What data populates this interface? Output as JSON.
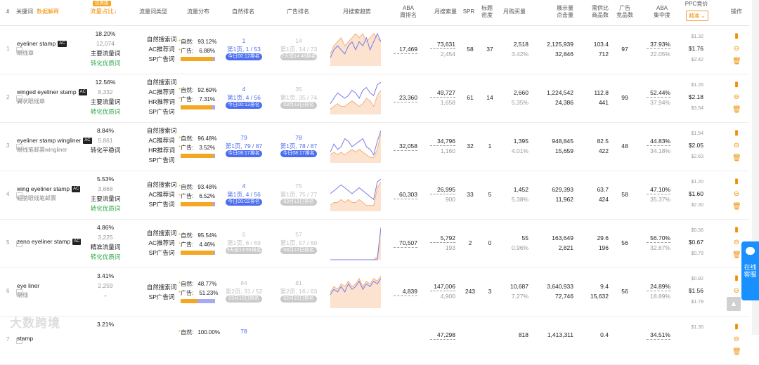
{
  "header": {
    "num": "#",
    "keyword": "关键词",
    "data_explain": "数据解释",
    "badge": "仅美版",
    "traffic_share": "流量占比↓",
    "kw_type": "流量词类型",
    "dist": "流量分布",
    "natural_rank": "自然排名",
    "ad_rank": "广告排名",
    "monthly_trend": "月搜索趋势",
    "aba": "ABA\n周排名",
    "monthly_search": "月搜索量",
    "spr": "SPR",
    "title_density": "标题\n密度",
    "monthly_purchase": "月购买量",
    "impr_click": "展示量\n点击量",
    "demand_supply": "需供比\n商品数",
    "ad_products": "广告\n竞品数",
    "aba_conc": "ABA\n集中度",
    "ppc": "PPC竞价",
    "ppc_select": "精准 ⌄",
    "ops": "操作"
  },
  "rows": [
    {
      "idx": "1",
      "kw": "eyeliner stamp",
      "ac": "AC",
      "cn": "眼线章",
      "pct": "18.20%",
      "pct2": "12,074",
      "level": "主要流量词",
      "conv": "转化优质词",
      "types": [
        "自然搜索词",
        "AC推荐词",
        "SP广告词"
      ],
      "nat_label": "自然:",
      "nat_pct": "93.12%",
      "ad_label": "广告:",
      "ad_pct": "6.88%",
      "nat_frac": 0.9312,
      "nr1": "1",
      "nr2": "第1页, 1 / 53",
      "nr_tag": "今日00:12排名",
      "nr_gray": false,
      "ar1": "14",
      "ar2": "第1页, 14 / 73",
      "ar_tag": "2天前14:48排名",
      "ar_gray": true,
      "aba": "17,469",
      "ms": "73,631",
      "ms2": "2,454",
      "spr": "58",
      "td": "37",
      "mp": "2,518",
      "mp2": "3.42%",
      "imp": "2,125,939",
      "clk": "32,846",
      "ds": "103.4",
      "prod": "712",
      "adc": "97",
      "conc": "37.93%",
      "conc2": "22.05%",
      "p1": "$1.32",
      "p2": "$1.76",
      "p3": "$2.42",
      "trend_n": [
        2,
        4,
        5,
        4,
        3,
        5,
        6,
        4,
        6,
        5,
        7,
        4,
        6,
        8,
        6
      ],
      "trend_a": [
        3,
        5,
        6,
        7,
        5,
        6,
        7,
        8,
        7,
        8,
        6,
        7,
        8,
        7,
        6
      ]
    },
    {
      "idx": "2",
      "kw": "winged eyeliner stamp",
      "ac": "AC",
      "cn": "翼状眼线章",
      "pct": "12.56%",
      "pct2": "8,332",
      "level": "主要流量词",
      "conv": "转化优质词",
      "types": [
        "自然搜索词",
        "AC推荐词",
        "HR推荐词",
        "SP广告词"
      ],
      "nat_label": "自然:",
      "nat_pct": "92.69%",
      "ad_label": "广告:",
      "ad_pct": "7.31%",
      "nat_frac": 0.9269,
      "nr1": "4",
      "nr2": "第1页, 4 / 56",
      "nr_tag": "今日00:13排名",
      "nr_gray": false,
      "ar1": "35",
      "ar2": "第1页, 35 / 74",
      "ar_tag": "03月13日排名",
      "ar_gray": true,
      "aba": "23,360",
      "ms": "49,727",
      "ms2": "1,658",
      "spr": "61",
      "td": "14",
      "mp": "2,660",
      "mp2": "5.35%",
      "imp": "1,224,542",
      "clk": "24,386",
      "ds": "112.8",
      "prod": "441",
      "adc": "99",
      "conc": "52.44%",
      "conc2": "37.94%",
      "p1": "$1.26",
      "p2": "$2.18",
      "p3": "$3.54",
      "trend_n": [
        4,
        6,
        8,
        7,
        6,
        7,
        9,
        8,
        6,
        9,
        10,
        8,
        7,
        11,
        12
      ],
      "trend_a": [
        2,
        3,
        4,
        3,
        3,
        4,
        5,
        4,
        3,
        4,
        6,
        5,
        3,
        7,
        9
      ]
    },
    {
      "idx": "3",
      "kw": "eyeliner stamp wingliner",
      "ac": "AC",
      "cn": "眼线笔邮票wingliner",
      "pct": "8.84%",
      "pct2": "5,861",
      "level": "转化平稳词",
      "conv": "",
      "types": [
        "自然搜索词",
        "AC推荐词",
        "HR推荐词",
        "SP广告词"
      ],
      "nat_label": "自然:",
      "nat_pct": "96.48%",
      "ad_label": "广告:",
      "ad_pct": "3.52%",
      "nat_frac": 0.9648,
      "nr1": "79",
      "nr2": "第1页, 79 / 87",
      "nr_tag": "今日08:17排名",
      "nr_gray": false,
      "ar1": "78",
      "ar2": "第1页, 78 / 87",
      "ar_tag": "今日08:17排名",
      "ar_gray": false,
      "aba": "32,058",
      "ms": "34,796",
      "ms2": "1,160",
      "spr": "32",
      "td": "1",
      "mp": "1,395",
      "mp2": "4.01%",
      "imp": "948,845",
      "clk": "15,659",
      "ds": "82.5",
      "prod": "422",
      "adc": "48",
      "conc": "44.83%",
      "conc2": "34.18%",
      "p1": "$1.54",
      "p2": "$2.05",
      "p3": "$2.63",
      "trend_n": [
        4,
        7,
        5,
        6,
        9,
        8,
        6,
        7,
        8,
        9,
        6,
        5,
        3,
        8,
        12
      ],
      "trend_a": [
        3,
        4,
        3,
        4,
        3,
        4,
        5,
        4,
        5,
        4,
        3,
        2,
        2,
        5,
        11
      ]
    },
    {
      "idx": "4",
      "kw": "wing eyeliner stamp",
      "ac": "AC",
      "cn": "翅膀眼线笔邮票",
      "pct": "5.53%",
      "pct2": "3,668",
      "level": "主要流量词",
      "conv": "转化优质词",
      "types": [
        "自然搜索词",
        "AC推荐词",
        "SP广告词"
      ],
      "nat_label": "自然:",
      "nat_pct": "93.48%",
      "ad_label": "广告:",
      "ad_pct": "6.52%",
      "nat_frac": 0.9348,
      "nr1": "4",
      "nr2": "第1页, 4 / 56",
      "nr_tag": "今日00:02排名",
      "nr_gray": false,
      "ar1": "75",
      "ar2": "第1页, 75 / 77",
      "ar_tag": "03月13日排名",
      "ar_gray": true,
      "aba": "60,303",
      "ms": "26,995",
      "ms2": "900",
      "spr": "33",
      "td": "5",
      "mp": "1,452",
      "mp2": "5.38%",
      "imp": "629,393",
      "clk": "11,962",
      "ds": "63.7",
      "prod": "424",
      "adc": "58",
      "conc": "47.10%",
      "conc2": "35.37%",
      "p1": "$1.20",
      "p2": "$1.60",
      "p3": "$2.30",
      "trend_n": [
        6,
        7,
        8,
        9,
        8,
        7,
        6,
        7,
        8,
        7,
        6,
        5,
        4,
        10,
        11
      ],
      "trend_a": [
        2,
        3,
        3,
        4,
        3,
        4,
        3,
        3,
        4,
        3,
        2,
        2,
        2,
        8,
        10
      ]
    },
    {
      "idx": "5",
      "kw": "zena eyeliner stamp",
      "ac": "AC",
      "cn": "",
      "pct": "4.86%",
      "pct2": "3,225",
      "level": "精准流量词",
      "conv": "转化优质词",
      "types": [
        "自然搜索词",
        "AC推荐词",
        "SP广告词"
      ],
      "nat_label": "自然:",
      "nat_pct": "95.54%",
      "ad_label": "广告:",
      "ad_pct": "4.46%",
      "nat_frac": 0.9554,
      "nr1": "6",
      "nr2": "第1页, 6 / 69",
      "nr_tag": "3天前13:56排名",
      "nr_gray": true,
      "ar1": "57",
      "ar2": "第1页, 57 / 60",
      "ar_tag": "03月12日排名",
      "ar_gray": true,
      "aba": "70,507",
      "ms": "5,792",
      "ms2": "193",
      "spr": "2",
      "td": "0",
      "mp": "55",
      "mp2": "0.96%",
      "imp": "163,649",
      "clk": "2,821",
      "ds": "29.6",
      "prod": "196",
      "adc": "56",
      "conc": "56.70%",
      "conc2": "32.67%",
      "p1": "$0.56",
      "p2": "$0.67",
      "p3": "$0.79",
      "trend_n": [
        0,
        0,
        0,
        0,
        0,
        0,
        0,
        0,
        0,
        0,
        0,
        0,
        0,
        0,
        12
      ],
      "trend_a": [
        0,
        0,
        0,
        0,
        0,
        0,
        0,
        0,
        0,
        0,
        0,
        0,
        0,
        1,
        12
      ]
    },
    {
      "idx": "6",
      "kw": "eye liner",
      "ac": "",
      "cn": "眼线",
      "pct": "3.41%",
      "pct2": "2,259",
      "level": "-",
      "conv": "",
      "types": [
        "自然搜索词",
        "SP广告词"
      ],
      "nat_label": "自然:",
      "nat_pct": "48.77%",
      "ad_label": "广告:",
      "ad_pct": "51.23%",
      "nat_frac": 0.4877,
      "nr1": "84",
      "nr2": "第2页, 31 / 52",
      "nr_tag": "03月10日排名",
      "nr_gray": true,
      "ar1": "81",
      "ar2": "第2页, 16 / 63",
      "ar_tag": "02月15日排名",
      "ar_gray": true,
      "aba": "4,839",
      "ms": "147,006",
      "ms2": "4,900",
      "spr": "243",
      "td": "3",
      "mp": "10,687",
      "mp2": "7.27%",
      "imp": "3,640,933",
      "clk": "72,746",
      "ds": "9.4",
      "prod": "15,632",
      "adc": "56",
      "conc": "24.89%",
      "conc2": "18.89%",
      "p1": "$0.82",
      "p2": "$1.56",
      "p3": "$1.79",
      "trend_n": [
        5,
        7,
        6,
        8,
        6,
        9,
        7,
        8,
        10,
        7,
        9,
        8,
        10,
        9,
        11
      ],
      "trend_a": [
        6,
        8,
        7,
        9,
        8,
        10,
        8,
        9,
        11,
        8,
        10,
        9,
        11,
        10,
        12
      ]
    },
    {
      "idx": "7",
      "kw": "stamp",
      "ac": "",
      "cn": "",
      "pct": "3.21%",
      "pct2": "",
      "level": "",
      "conv": "",
      "types": [],
      "nat_label": "自然:",
      "nat_pct": "100.00%",
      "ad_label": "",
      "ad_pct": "",
      "nat_frac": 1,
      "nr1": "78",
      "nr2": "",
      "nr_tag": "",
      "nr_gray": false,
      "ar1": "",
      "ar2": "",
      "ar_tag": "",
      "ar_gray": true,
      "aba": "",
      "ms": "47,298",
      "ms2": "",
      "spr": "",
      "td": "",
      "mp": "818",
      "mp2": "",
      "imp": "1,413,311",
      "clk": "",
      "ds": "0.4",
      "prod": "",
      "adc": "",
      "conc": "34.51%",
      "conc2": "",
      "p1": "$1.35",
      "p2": "",
      "p3": "",
      "trend_n": [],
      "trend_a": []
    }
  ],
  "side_widget": "在线客服",
  "watermark": "大数跨境",
  "colors": {
    "accent": "#f08c00",
    "blue": "#4a6cf0",
    "green": "#2eaa4a",
    "trend_natural": "#7b7be8",
    "trend_ad": "#f4b07a"
  }
}
